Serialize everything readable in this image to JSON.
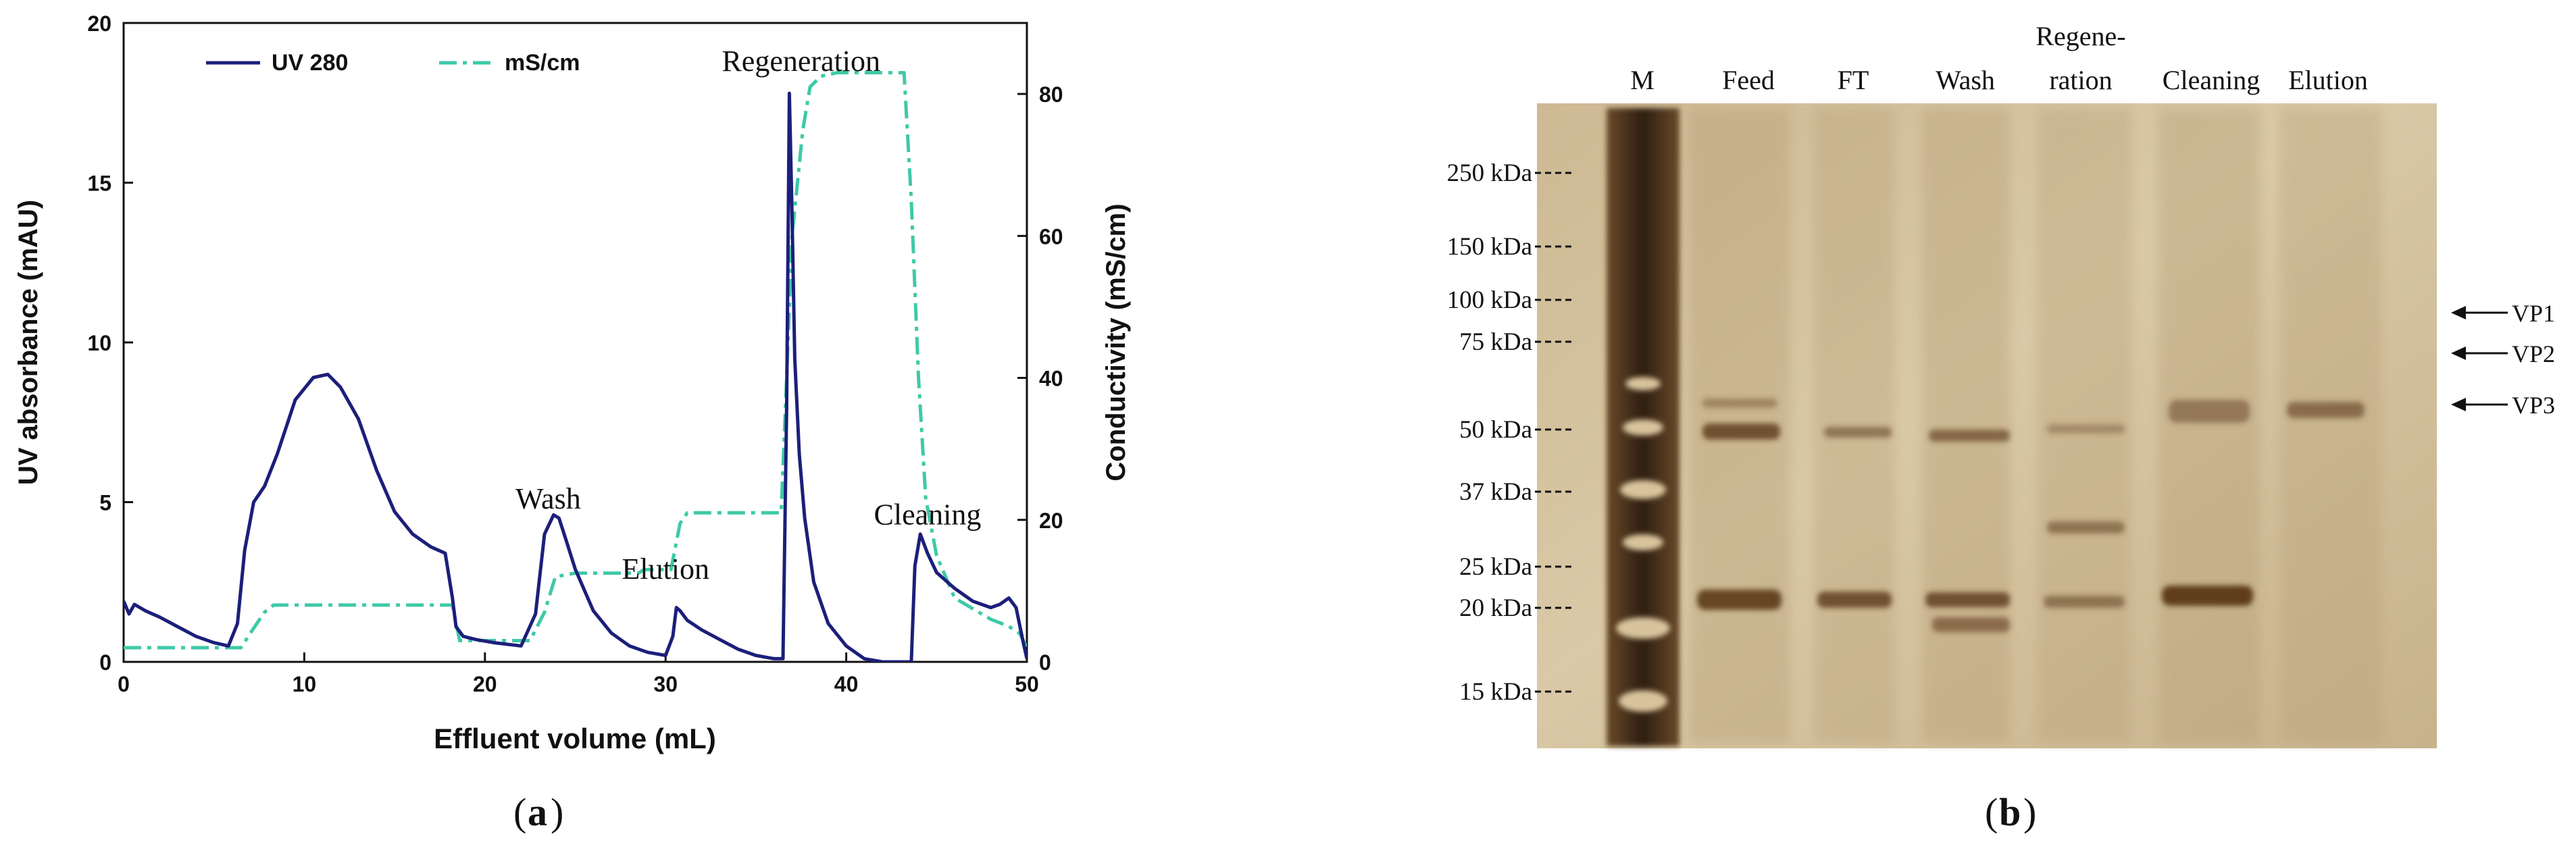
{
  "panel_a": {
    "caption": "a",
    "chart_data": {
      "type": "line",
      "xlabel": "Effluent volume (mL)",
      "ylabel": "UV absorbance (mAU)",
      "y2label": "Conductivity (mS/cm)",
      "xlim": [
        0,
        50
      ],
      "ylim": [
        0,
        20
      ],
      "y2lim": [
        0,
        90
      ],
      "x_ticks": [
        0,
        10,
        20,
        30,
        40,
        50
      ],
      "y_ticks": [
        0,
        5,
        10,
        15,
        20
      ],
      "y2_ticks": [
        0,
        20,
        40,
        60,
        80
      ],
      "series": [
        {
          "name": "UV 280",
          "axis": "left",
          "color": "#1c1f7a",
          "style": "solid",
          "x": [
            0,
            0.3,
            0.6,
            1.2,
            2,
            3,
            4,
            5,
            5.8,
            6.3,
            6.7,
            7.2,
            7.8,
            8.5,
            9.5,
            10.5,
            11.3,
            12,
            13,
            14,
            15,
            16,
            17,
            17.8,
            18.2,
            18.4,
            18.8,
            19.5,
            20.5,
            22,
            22.8,
            23.3,
            23.8,
            24.1,
            24.5,
            25,
            26,
            27,
            28,
            29,
            30,
            30.4,
            30.6,
            30.8,
            31.2,
            32,
            33,
            34,
            35,
            36,
            36.5,
            36.7,
            36.85,
            37.0,
            37.15,
            37.4,
            37.7,
            38.2,
            39,
            40,
            41,
            42,
            43,
            43.6,
            43.8,
            44.1,
            44.5,
            45,
            46,
            47,
            48,
            48.5,
            49,
            49.4,
            49.8,
            50
          ],
          "values": [
            1.9,
            1.5,
            1.8,
            1.6,
            1.4,
            1.1,
            0.8,
            0.6,
            0.5,
            1.2,
            3.5,
            5.0,
            5.5,
            6.5,
            8.2,
            8.9,
            9.0,
            8.6,
            7.6,
            6.0,
            4.7,
            4.0,
            3.6,
            3.4,
            2.0,
            1.1,
            0.8,
            0.7,
            0.6,
            0.5,
            1.5,
            4.0,
            4.6,
            4.5,
            3.8,
            2.9,
            1.6,
            0.9,
            0.5,
            0.3,
            0.2,
            0.8,
            1.7,
            1.6,
            1.3,
            1.0,
            0.7,
            0.4,
            0.2,
            0.1,
            0.1,
            8.0,
            17.8,
            14.0,
            9.5,
            6.5,
            4.5,
            2.5,
            1.2,
            0.5,
            0.1,
            0.0,
            0.0,
            0.0,
            3.0,
            4.0,
            3.4,
            2.8,
            2.3,
            1.9,
            1.7,
            1.8,
            2.0,
            1.7,
            0.6,
            0.1
          ]
        },
        {
          "name": "mS/cm",
          "axis": "right",
          "color": "#3ec9a7",
          "style": "dashdot",
          "x": [
            0,
            6.5,
            7.0,
            7.8,
            8.3,
            18.2,
            18.6,
            22.5,
            23.3,
            23.9,
            25,
            28.5,
            28.8,
            30.3,
            30.8,
            31.2,
            36.4,
            36.7,
            37.0,
            37.6,
            38.0,
            38.6,
            39.5,
            43.2,
            43.6,
            44.0,
            44.4,
            45,
            46,
            48,
            49,
            49.6,
            50
          ],
          "values": [
            2.0,
            2.0,
            4.0,
            7.0,
            8.0,
            8.0,
            3.0,
            3.0,
            7.0,
            12.0,
            12.5,
            12.5,
            13.0,
            13.0,
            19.5,
            21.0,
            21.0,
            40.0,
            60.0,
            75.0,
            81.0,
            82.5,
            83.0,
            83.0,
            65.0,
            40.0,
            23.0,
            15.0,
            9.0,
            6.0,
            5.0,
            4.0,
            2.0
          ]
        }
      ],
      "annotations": [
        {
          "text": "Regeneration",
          "x": 37.5,
          "y": 18.5
        },
        {
          "text": "Wash",
          "x": 23.5,
          "y": 4.8
        },
        {
          "text": "Elution",
          "x": 30,
          "y": 2.6
        },
        {
          "text": "Cleaning",
          "x": 44.5,
          "y": 4.3
        }
      ]
    }
  },
  "panel_b": {
    "caption": "b",
    "lanes": [
      "M",
      "Feed",
      "FT",
      "Wash",
      "Regene-",
      "ration",
      "Cleaning",
      "Elution"
    ],
    "mw_markers": [
      "250 kDa",
      "150 kDa",
      "100 kDa",
      "75 kDa",
      "50 kDa",
      "37 kDa",
      "25 kDa",
      "20 kDa",
      "15 kDa"
    ],
    "proteins": [
      "VP1",
      "VP2",
      "VP3"
    ]
  }
}
